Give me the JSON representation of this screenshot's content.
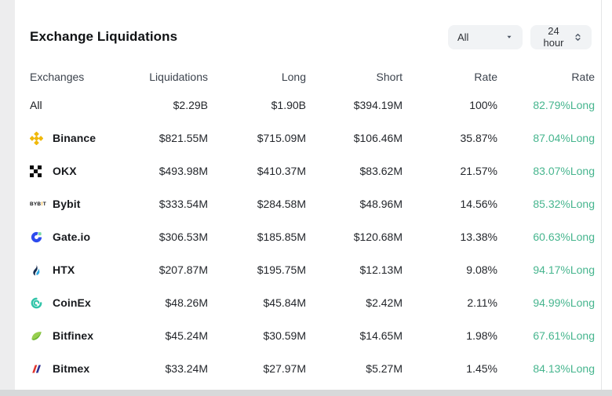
{
  "card": {
    "title": "Exchange Liquidations",
    "filters": {
      "symbol_selected": "All",
      "timeframe_selected": "24 hour"
    }
  },
  "table": {
    "columns": [
      "Exchanges",
      "Liquidations",
      "Long",
      "Short",
      "Rate",
      "Rate"
    ],
    "rows": [
      {
        "exchange": "All",
        "icon": "",
        "liquidations": "$2.29B",
        "long": "$1.90B",
        "short": "$394.19M",
        "rate": "100%",
        "long_rate": "82.79%Long"
      },
      {
        "exchange": "Binance",
        "icon": "binance",
        "liquidations": "$821.55M",
        "long": "$715.09M",
        "short": "$106.46M",
        "rate": "35.87%",
        "long_rate": "87.04%Long"
      },
      {
        "exchange": "OKX",
        "icon": "okx",
        "liquidations": "$493.98M",
        "long": "$410.37M",
        "short": "$83.62M",
        "rate": "21.57%",
        "long_rate": "83.07%Long"
      },
      {
        "exchange": "Bybit",
        "icon": "bybit",
        "liquidations": "$333.54M",
        "long": "$284.58M",
        "short": "$48.96M",
        "rate": "14.56%",
        "long_rate": "85.32%Long"
      },
      {
        "exchange": "Gate.io",
        "icon": "gate",
        "liquidations": "$306.53M",
        "long": "$185.85M",
        "short": "$120.68M",
        "rate": "13.38%",
        "long_rate": "60.63%Long"
      },
      {
        "exchange": "HTX",
        "icon": "htx",
        "liquidations": "$207.87M",
        "long": "$195.75M",
        "short": "$12.13M",
        "rate": "9.08%",
        "long_rate": "94.17%Long"
      },
      {
        "exchange": "CoinEx",
        "icon": "coinex",
        "liquidations": "$48.26M",
        "long": "$45.84M",
        "short": "$2.42M",
        "rate": "2.11%",
        "long_rate": "94.99%Long"
      },
      {
        "exchange": "Bitfinex",
        "icon": "bitfinex",
        "liquidations": "$45.24M",
        "long": "$30.59M",
        "short": "$14.65M",
        "rate": "1.98%",
        "long_rate": "67.61%Long"
      },
      {
        "exchange": "Bitmex",
        "icon": "bitmex",
        "liquidations": "$33.24M",
        "long": "$27.97M",
        "short": "$5.27M",
        "rate": "1.45%",
        "long_rate": "84.13%Long"
      }
    ]
  },
  "colors": {
    "long_rate_green": "#46b58e",
    "binance_gold": "#f0b90b",
    "okx_black": "#0c0c0c",
    "bybit_orange": "#f7a600",
    "gate_blue": "#2d4bee",
    "gate_green": "#79d9a6",
    "htx_navy": "#152b4e",
    "htx_blue": "#2da8e0",
    "coinex_teal": "#31c4a9",
    "bitfinex_green": "#97ce4f",
    "bitfinex_dark_green": "#69b32d",
    "bitmex_red": "#e0332c",
    "bitmex_blue": "#2e3192"
  }
}
